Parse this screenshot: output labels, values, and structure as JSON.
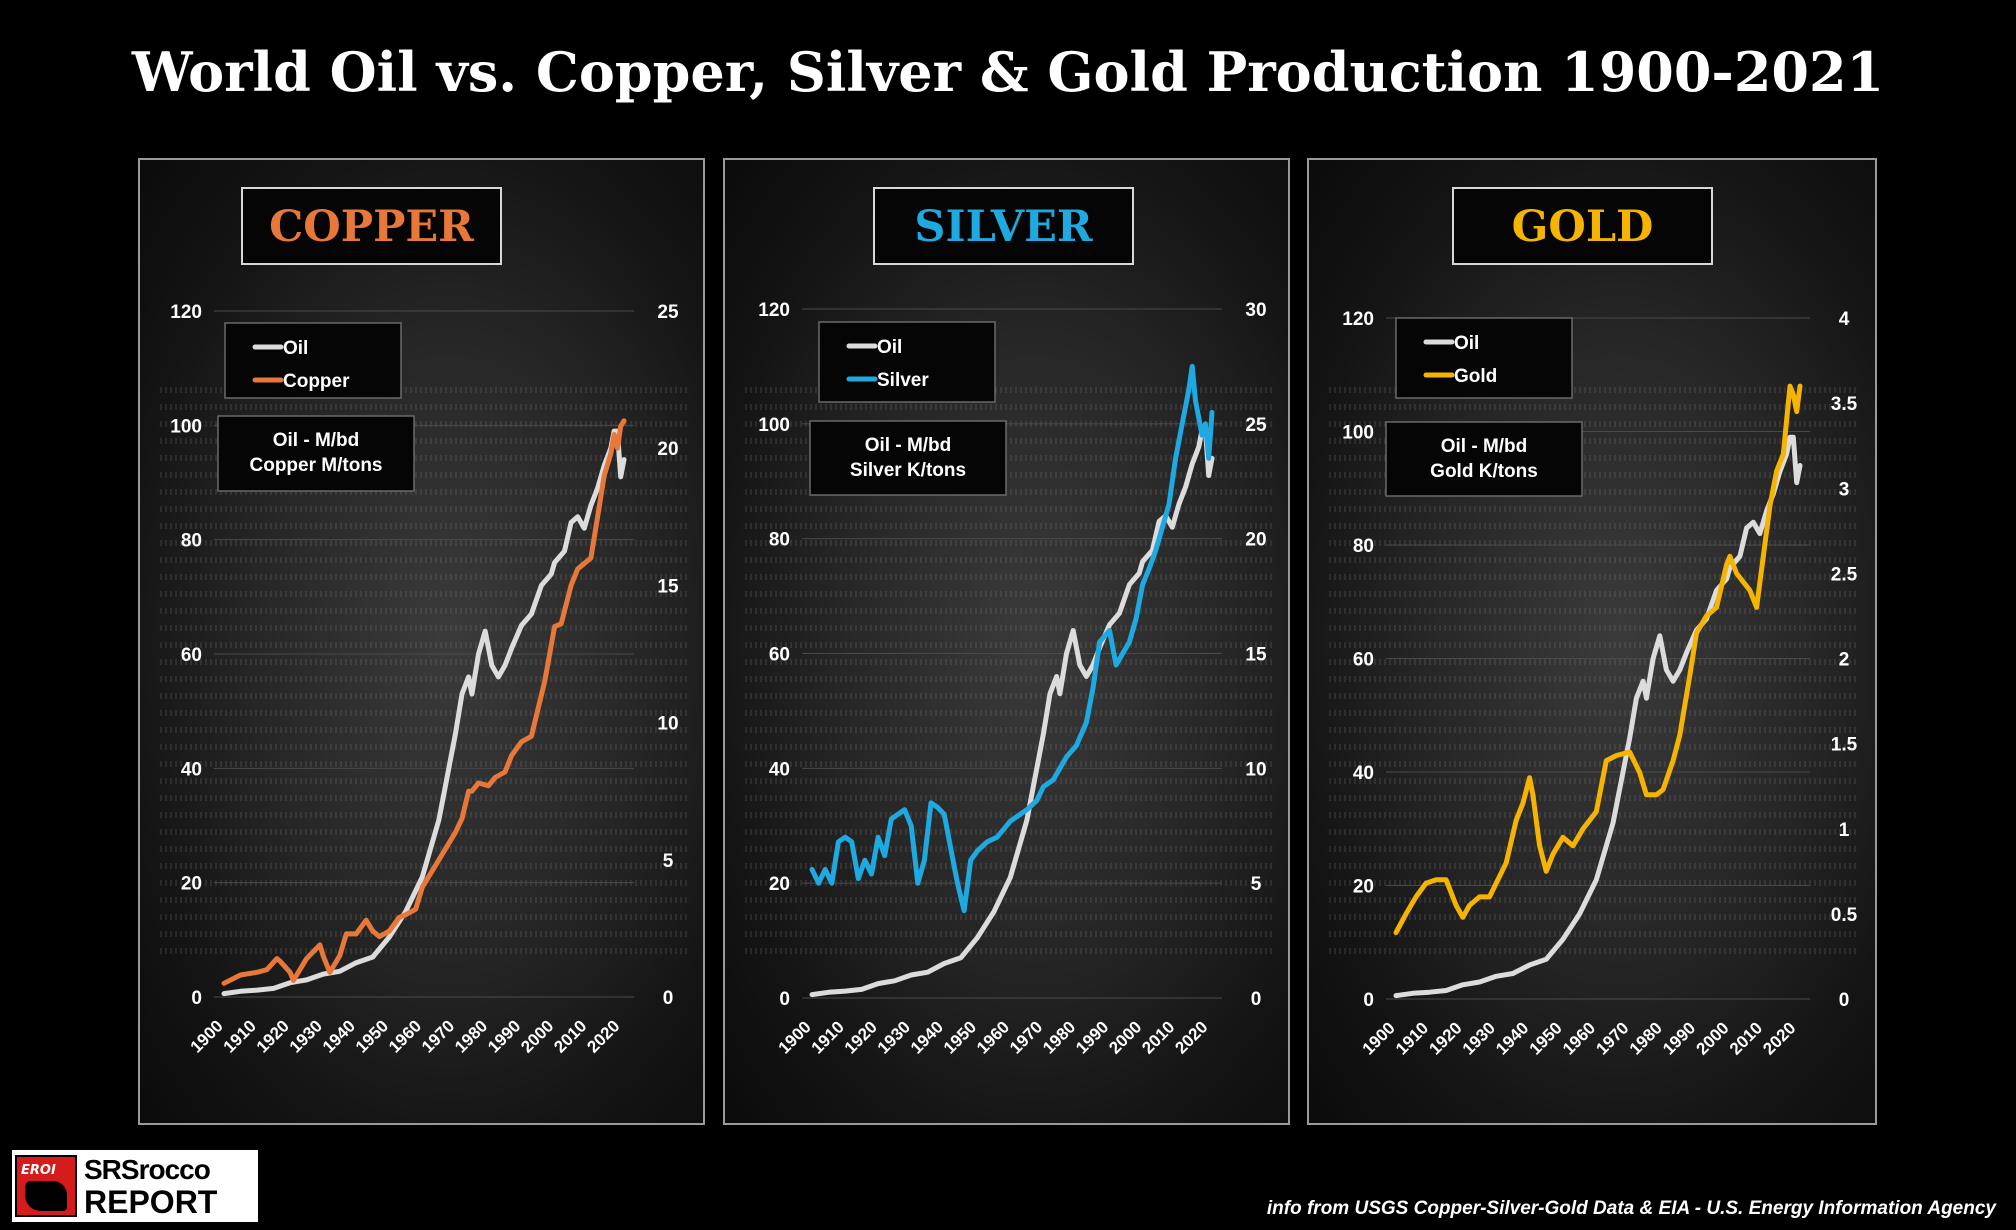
{
  "title": "World Oil vs. Copper, Silver & Gold Production 1900-2021",
  "credit": "info from USGS Copper-Silver-Gold Data & EIA - U.S. Energy Information Agency",
  "logo": {
    "badge": "EROI",
    "line1": "SRSrocco",
    "line2": "REPORT"
  },
  "colors": {
    "oil": "#dcdcdc",
    "copper": "#e8783a",
    "silver": "#1ea9e1",
    "gold": "#f5b400",
    "grid": "#4a4a4a",
    "axis_text": "#ffffff"
  },
  "chart_data": [
    {
      "type": "line",
      "title": "COPPER",
      "title_color": "#e8783a",
      "units_note": [
        "Oil - M/bd",
        "Copper M/tons"
      ],
      "x_ticks": [
        "1900",
        "1910",
        "1920",
        "1930",
        "1940",
        "1950",
        "1960",
        "1970",
        "1980",
        "1990",
        "2000",
        "2010",
        "2020"
      ],
      "xlim": [
        1900,
        2021
      ],
      "ylim_left": [
        0,
        120
      ],
      "y_ticks_left": [
        "0",
        "20",
        "40",
        "60",
        "80",
        "100",
        "120"
      ],
      "ylim_right": [
        0,
        25
      ],
      "y_ticks_right": [
        "0",
        "5",
        "10",
        "15",
        "20",
        "25"
      ],
      "series": [
        {
          "name": "Oil",
          "axis": "left",
          "color": "#dcdcdc",
          "x": [
            1900,
            1905,
            1910,
            1915,
            1920,
            1925,
            1930,
            1935,
            1940,
            1945,
            1950,
            1955,
            1960,
            1965,
            1970,
            1972,
            1974,
            1975,
            1977,
            1979,
            1981,
            1983,
            1985,
            1987,
            1990,
            1993,
            1996,
            1999,
            2000,
            2003,
            2005,
            2007,
            2009,
            2011,
            2013,
            2015,
            2017,
            2018,
            2019,
            2020,
            2021
          ],
          "y": [
            0.6,
            1.0,
            1.2,
            1.5,
            2.5,
            3,
            4,
            4.5,
            6,
            7,
            10.5,
            15,
            21,
            31,
            46,
            53,
            56,
            53,
            60,
            64,
            58,
            56,
            58,
            61,
            65,
            67,
            72,
            74,
            76,
            78,
            83,
            84,
            82,
            86,
            89,
            93,
            96,
            99,
            99,
            91,
            94
          ]
        },
        {
          "name": "Copper",
          "axis": "right",
          "color": "#e8783a",
          "x": [
            1900,
            1905,
            1910,
            1913,
            1916,
            1917,
            1920,
            1921,
            1925,
            1929,
            1930,
            1932,
            1935,
            1937,
            1940,
            1943,
            1945,
            1947,
            1950,
            1953,
            1955,
            1958,
            1960,
            1965,
            1970,
            1972,
            1974,
            1975,
            1977,
            1980,
            1982,
            1985,
            1987,
            1990,
            1993,
            1995,
            1997,
            2000,
            2002,
            2005,
            2007,
            2009,
            2011,
            2013,
            2015,
            2017,
            2018,
            2019,
            2020,
            2021
          ],
          "y": [
            0.5,
            0.8,
            0.9,
            1.0,
            1.4,
            1.3,
            0.9,
            0.6,
            1.4,
            1.9,
            1.5,
            0.9,
            1.5,
            2.3,
            2.3,
            2.8,
            2.4,
            2.2,
            2.4,
            2.9,
            3.0,
            3.2,
            4.0,
            5.0,
            6.0,
            6.5,
            7.5,
            7.5,
            7.8,
            7.7,
            8.0,
            8.2,
            8.8,
            9.3,
            9.5,
            10.5,
            11.5,
            13.5,
            13.6,
            15.0,
            15.6,
            15.8,
            16.0,
            17.5,
            19.0,
            19.8,
            20.5,
            20.0,
            20.8,
            21.0
          ]
        }
      ]
    },
    {
      "type": "line",
      "title": "SILVER",
      "title_color": "#1ea9e1",
      "units_note": [
        "Oil - M/bd",
        "Silver K/tons"
      ],
      "x_ticks": [
        "1900",
        "1910",
        "1920",
        "1930",
        "1940",
        "1950",
        "1960",
        "1970",
        "1980",
        "1990",
        "2000",
        "2010",
        "2020"
      ],
      "xlim": [
        1900,
        2021
      ],
      "ylim_left": [
        0,
        120
      ],
      "y_ticks_left": [
        "0",
        "20",
        "40",
        "60",
        "80",
        "100",
        "120"
      ],
      "ylim_right": [
        0,
        30
      ],
      "y_ticks_right": [
        "0",
        "5",
        "10",
        "15",
        "20",
        "25",
        "30"
      ],
      "series": [
        {
          "name": "Oil",
          "axis": "left",
          "color": "#dcdcdc",
          "x": [
            1900,
            1905,
            1910,
            1915,
            1920,
            1925,
            1930,
            1935,
            1940,
            1945,
            1950,
            1955,
            1960,
            1965,
            1970,
            1972,
            1974,
            1975,
            1977,
            1979,
            1981,
            1983,
            1985,
            1987,
            1990,
            1993,
            1996,
            1999,
            2000,
            2003,
            2005,
            2007,
            2009,
            2011,
            2013,
            2015,
            2017,
            2018,
            2019,
            2020,
            2021
          ],
          "y": [
            0.6,
            1.0,
            1.2,
            1.5,
            2.5,
            3,
            4,
            4.5,
            6,
            7,
            10.5,
            15,
            21,
            31,
            46,
            53,
            56,
            53,
            60,
            64,
            58,
            56,
            58,
            61,
            65,
            67,
            72,
            74,
            76,
            78,
            83,
            84,
            82,
            86,
            89,
            93,
            96,
            99,
            99,
            91,
            94
          ]
        },
        {
          "name": "Silver",
          "axis": "right",
          "color": "#1ea9e1",
          "x": [
            1900,
            1902,
            1904,
            1906,
            1908,
            1910,
            1912,
            1914,
            1916,
            1918,
            1920,
            1922,
            1924,
            1926,
            1928,
            1930,
            1932,
            1934,
            1936,
            1938,
            1940,
            1942,
            1944,
            1946,
            1948,
            1950,
            1953,
            1956,
            1960,
            1963,
            1965,
            1968,
            1970,
            1973,
            1975,
            1977,
            1980,
            1983,
            1985,
            1987,
            1990,
            1992,
            1994,
            1996,
            1998,
            2000,
            2002,
            2004,
            2006,
            2008,
            2010,
            2012,
            2014,
            2015,
            2016,
            2018,
            2019,
            2020,
            2021
          ],
          "y": [
            5.6,
            5.0,
            5.6,
            5.0,
            6.8,
            7.0,
            6.8,
            5.2,
            6.0,
            5.4,
            7.0,
            6.2,
            7.8,
            8.0,
            8.2,
            7.5,
            5.0,
            6.0,
            8.5,
            8.3,
            8.0,
            6.5,
            5.0,
            3.8,
            6.0,
            6.4,
            6.8,
            7.0,
            7.7,
            8.0,
            8.2,
            8.6,
            9.2,
            9.5,
            10.0,
            10.5,
            11.0,
            12.0,
            13.5,
            15.5,
            16.0,
            14.5,
            15.0,
            15.5,
            16.5,
            18.0,
            18.7,
            19.5,
            20.5,
            21.5,
            23.5,
            25.0,
            26.5,
            27.5,
            26.0,
            24.5,
            25.0,
            23.5,
            25.5
          ]
        }
      ]
    },
    {
      "type": "line",
      "title": "GOLD",
      "title_color": "#f5b400",
      "units_note": [
        "Oil - M/bd",
        "Gold K/tons"
      ],
      "x_ticks": [
        "1900",
        "1910",
        "1920",
        "1930",
        "1940",
        "1950",
        "1960",
        "1970",
        "1980",
        "1990",
        "2000",
        "2010",
        "2020"
      ],
      "xlim": [
        1900,
        2021
      ],
      "ylim_left": [
        0,
        120
      ],
      "y_ticks_left": [
        "0",
        "20",
        "40",
        "60",
        "80",
        "100",
        "120"
      ],
      "ylim_right": [
        0,
        4
      ],
      "y_ticks_right": [
        "0",
        "0.5",
        "1",
        "1.5",
        "2",
        "2.5",
        "3",
        "3.5",
        "4"
      ],
      "series": [
        {
          "name": "Oil",
          "axis": "left",
          "color": "#dcdcdc",
          "x": [
            1900,
            1905,
            1910,
            1915,
            1920,
            1925,
            1930,
            1935,
            1940,
            1945,
            1950,
            1955,
            1960,
            1965,
            1970,
            1972,
            1974,
            1975,
            1977,
            1979,
            1981,
            1983,
            1985,
            1987,
            1990,
            1993,
            1996,
            1999,
            2000,
            2003,
            2005,
            2007,
            2009,
            2011,
            2013,
            2015,
            2017,
            2018,
            2019,
            2020,
            2021
          ],
          "y": [
            0.6,
            1.0,
            1.2,
            1.5,
            2.5,
            3,
            4,
            4.5,
            6,
            7,
            10.5,
            15,
            21,
            31,
            46,
            53,
            56,
            53,
            60,
            64,
            58,
            56,
            58,
            61,
            65,
            67,
            72,
            74,
            76,
            78,
            83,
            84,
            82,
            86,
            89,
            93,
            96,
            99,
            99,
            91,
            94
          ]
        },
        {
          "name": "Gold",
          "axis": "right",
          "color": "#f5b400",
          "x": [
            1900,
            1903,
            1906,
            1909,
            1912,
            1915,
            1918,
            1920,
            1922,
            1925,
            1928,
            1930,
            1933,
            1936,
            1938,
            1940,
            1941,
            1943,
            1945,
            1947,
            1950,
            1953,
            1956,
            1960,
            1963,
            1966,
            1970,
            1973,
            1975,
            1978,
            1980,
            1983,
            1985,
            1988,
            1990,
            1993,
            1996,
            1999,
            2000,
            2002,
            2004,
            2006,
            2008,
            2010,
            2012,
            2014,
            2016,
            2017,
            2018,
            2019,
            2020,
            2021
          ],
          "y": [
            0.39,
            0.5,
            0.6,
            0.68,
            0.7,
            0.7,
            0.55,
            0.48,
            0.55,
            0.6,
            0.6,
            0.68,
            0.8,
            1.05,
            1.15,
            1.3,
            1.2,
            0.9,
            0.75,
            0.85,
            0.95,
            0.9,
            1.0,
            1.1,
            1.4,
            1.43,
            1.45,
            1.33,
            1.2,
            1.2,
            1.23,
            1.4,
            1.55,
            1.9,
            2.15,
            2.25,
            2.3,
            2.55,
            2.6,
            2.5,
            2.45,
            2.4,
            2.3,
            2.6,
            2.9,
            3.1,
            3.2,
            3.4,
            3.6,
            3.55,
            3.45,
            3.6
          ]
        }
      ]
    }
  ]
}
